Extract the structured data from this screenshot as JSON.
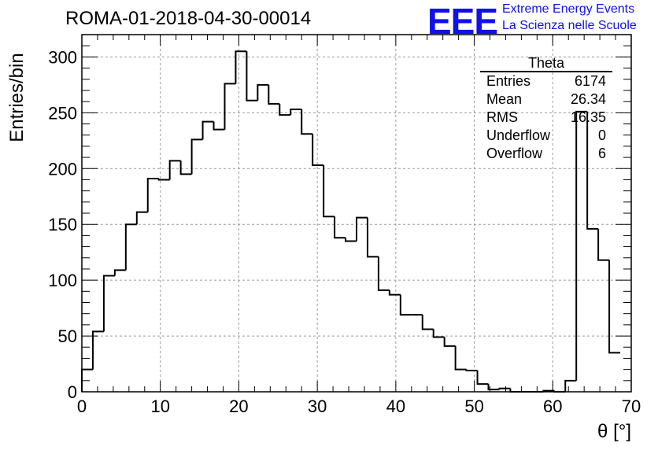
{
  "header": {
    "run_title": "ROMA-01-2018-04-30-00014",
    "logo_mark": "EEE",
    "logo_line1": "Extreme Energy Events",
    "logo_line2": "La Scienza nelle Scuole",
    "logo_color": "#1010e8"
  },
  "stats_box": {
    "title": "Theta",
    "rows": [
      {
        "label": "Entries",
        "value": "6174"
      },
      {
        "label": "Mean",
        "value": "26.34"
      },
      {
        "label": "RMS",
        "value": "16.35"
      },
      {
        "label": "Underflow",
        "value": "0"
      },
      {
        "label": "Overflow",
        "value": "6"
      }
    ]
  },
  "chart_data": {
    "type": "bar",
    "style": "step-histogram",
    "title": "ROMA-01-2018-04-30-00014",
    "xlabel": "θ [°]",
    "ylabel": "Entries/bin",
    "xlim": [
      0,
      70
    ],
    "ylim": [
      0,
      320
    ],
    "xticks": [
      0,
      10,
      20,
      30,
      40,
      50,
      60,
      70
    ],
    "yticks": [
      0,
      50,
      100,
      150,
      200,
      250,
      300
    ],
    "grid": true,
    "bin_width": 1.4,
    "values": [
      20,
      54,
      104,
      109,
      150,
      161,
      191,
      190,
      207,
      195,
      226,
      242,
      235,
      276,
      305,
      261,
      275,
      258,
      248,
      253,
      231,
      203,
      157,
      138,
      135,
      156,
      121,
      91,
      87,
      69,
      69,
      56,
      49,
      41,
      20,
      19,
      7,
      2,
      3,
      0,
      0,
      0,
      1,
      0,
      10,
      251,
      146,
      118,
      35
    ],
    "line_color": "#000000"
  }
}
